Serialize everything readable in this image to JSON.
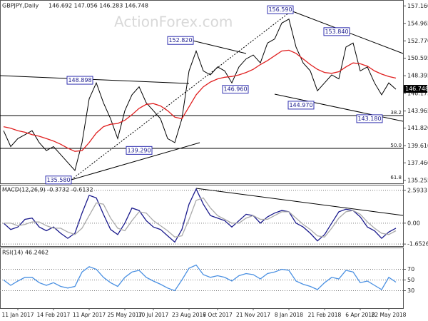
{
  "chart_data": [
    {
      "type": "line",
      "title": "GBPJPY,Daily",
      "subtitle": "146.692 147.056 146.283 146.748",
      "watermark": "ActionForex.com",
      "series": [
        {
          "color": "#000000",
          "values": [
            141.5,
            139.5,
            140.5,
            141,
            141.5,
            140,
            139,
            139.5,
            138.5,
            137.5,
            136.5,
            140,
            145.5,
            147.5,
            145,
            143,
            140.5,
            144,
            146,
            147,
            145,
            144,
            143,
            140.5,
            140,
            143,
            149,
            151.5,
            149,
            148.5,
            149.5,
            149,
            147.5,
            149.5,
            150.5,
            151,
            150,
            152.5,
            153,
            155,
            155.5,
            152,
            150,
            149,
            146.5,
            147.5,
            148.5,
            148,
            152,
            152.5,
            149,
            149.5,
            147.5,
            146,
            147.5,
            146.7
          ]
        },
        {
          "color": "#e02020",
          "values": [
            142,
            141.8,
            141.5,
            141.3,
            141,
            140.8,
            140.5,
            140.2,
            139.8,
            139.3,
            138.9,
            139,
            140,
            141.2,
            142,
            142.3,
            142.4,
            142.8,
            143.5,
            144.3,
            144.8,
            144.9,
            144.6,
            144,
            143.2,
            143,
            144.5,
            146,
            147,
            147.6,
            148,
            148.2,
            148.3,
            148.5,
            148.8,
            149.2,
            149.8,
            150.3,
            150.9,
            151.5,
            151.6,
            151.2,
            150.5,
            149.8,
            149.2,
            148.8,
            148.7,
            148.9,
            149.5,
            150,
            149.9,
            149.6,
            149,
            148.6,
            148.3,
            148.1
          ]
        }
      ],
      "ylim": [
        134.8,
        157.9
      ],
      "yticks": [
        {
          "value": 157.16,
          "label": "157.160"
        },
        154.965,
        {
          "value": 152.77,
          "label": "152.770"
        },
        150.595,
        148.395,
        146.175,
        143.965,
        {
          "value": 141.82,
          "label": "141.820"
        },
        {
          "value": 139.61,
          "label": "139.610"
        },
        {
          "value": 137.46,
          "label": "137.460"
        },
        135.255
      ],
      "last_price": {
        "value": 146.748,
        "label": "146.748"
      },
      "annotations": [
        {
          "value": 156.59,
          "label": "156.590"
        },
        {
          "value": 152.82,
          "label": "152.820"
        },
        {
          "value": 148.898,
          "label": "148.898"
        },
        {
          "value": 146.96,
          "label": "146.960"
        },
        {
          "value": 153.84,
          "label": "153.840"
        },
        {
          "value": 144.97,
          "label": "144.970"
        },
        {
          "value": 143.18,
          "label": "143.180"
        },
        {
          "value": 139.29,
          "label": "139.290"
        },
        {
          "value": 135.58,
          "label": "135.580"
        }
      ],
      "fib_labels": [
        "38.2",
        "50.0",
        "61.8"
      ]
    },
    {
      "type": "line",
      "title": "MACD(12,26,9) -0.3732 -0.6132",
      "series": [
        {
          "color": "#1a1a8c",
          "values": [
            0,
            -0.5,
            -0.3,
            0.3,
            0.4,
            -0.3,
            -0.6,
            -0.3,
            -0.8,
            -1.2,
            -0.8,
            0.8,
            2.2,
            2.0,
            0.7,
            -0.5,
            -0.9,
            0,
            1.2,
            1.0,
            0.2,
            -0.3,
            -0.5,
            -1.0,
            -1.5,
            -0.5,
            1.5,
            2.7,
            1.5,
            0.6,
            0.4,
            0.2,
            -0.3,
            0.2,
            0.7,
            0.6,
            0,
            0.5,
            0.8,
            1.0,
            0.9,
            0,
            -0.3,
            -0.8,
            -1.4,
            -0.9,
            0,
            0.9,
            1.1,
            1.0,
            0.5,
            -0.3,
            -0.6,
            -1.2,
            -0.7,
            -0.4
          ]
        },
        {
          "color": "#aaaaaa",
          "values": [
            0,
            0,
            -0.2,
            -0.1,
            0.1,
            0.1,
            -0.2,
            -0.4,
            -0.4,
            -0.7,
            -0.9,
            -0.4,
            0.6,
            1.6,
            1.5,
            0.4,
            -0.4,
            -0.6,
            0.2,
            0.9,
            0.8,
            0.2,
            -0.2,
            -0.6,
            -1.1,
            -1.0,
            0.3,
            1.8,
            2.0,
            1.2,
            0.6,
            0.3,
            0,
            0,
            0.4,
            0.6,
            0.3,
            0.3,
            0.6,
            0.9,
            0.9,
            0.4,
            -0.1,
            -0.5,
            -1.0,
            -1.1,
            -0.4,
            0.4,
            0.9,
            1.0,
            0.7,
            0.1,
            -0.4,
            -0.8,
            -0.9,
            -0.6
          ]
        }
      ],
      "ylim": [
        -1.87,
        2.98
      ],
      "yticks": [
        2.5933,
        {
          "value": 0,
          "label": "0.00"
        },
        -1.6526
      ]
    },
    {
      "type": "line",
      "title": "RSI(14) 46.2462",
      "series": [
        {
          "color": "#4a90e2",
          "values": [
            50,
            40,
            48,
            55,
            55,
            45,
            40,
            45,
            38,
            35,
            38,
            65,
            75,
            70,
            55,
            45,
            38,
            55,
            65,
            68,
            55,
            48,
            42,
            35,
            30,
            50,
            72,
            78,
            60,
            55,
            58,
            55,
            48,
            58,
            62,
            60,
            52,
            62,
            65,
            70,
            68,
            48,
            42,
            38,
            32,
            45,
            55,
            52,
            68,
            65,
            45,
            48,
            40,
            32,
            55,
            46
          ]
        }
      ],
      "ylim": [
        0,
        100
      ],
      "yticks": [
        70,
        50,
        30
      ],
      "categories": [
        null,
        null,
        "11 Jan 2017",
        null,
        null,
        null,
        null,
        "14 Feb 2017",
        null,
        null,
        null,
        null,
        "11 Apr 2017",
        null,
        null,
        null,
        null,
        "25 May 2017",
        null,
        null,
        null,
        "10 Jul 2017",
        null,
        null,
        null,
        null,
        "23 Aug 2017",
        null,
        null,
        null,
        "6 Oct 2017",
        null,
        null,
        null,
        null,
        "21 Nov 2017",
        null,
        null,
        null,
        null,
        "8 Jan 2018",
        null,
        null,
        null,
        null,
        "21 Feb 2018",
        null,
        null,
        null,
        null,
        "6 Apr 2018",
        null,
        null,
        null,
        "22 May 2018",
        null
      ]
    }
  ]
}
